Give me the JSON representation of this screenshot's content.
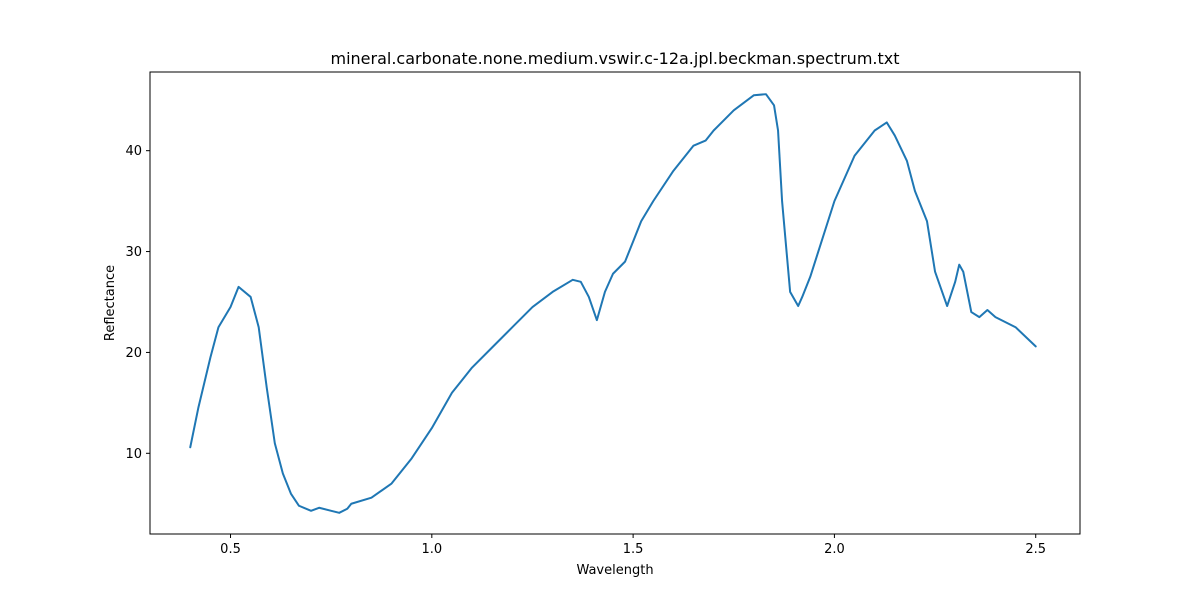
{
  "chart_data": {
    "type": "line",
    "title": "mineral.carbonate.none.medium.vswir.c-12a.jpl.beckman.spectrum.txt",
    "xlabel": "Wavelength",
    "ylabel": "Reflectance",
    "xlim": [
      0.3,
      2.61
    ],
    "ylim": [
      2.0,
      47.8
    ],
    "xticks": [
      0.5,
      1.0,
      1.5,
      2.0,
      2.5
    ],
    "xtick_labels": [
      "0.5",
      "1.0",
      "1.5",
      "2.0",
      "2.5"
    ],
    "yticks": [
      10,
      20,
      30,
      40
    ],
    "ytick_labels": [
      "10",
      "20",
      "30",
      "40"
    ],
    "grid": false,
    "series": [
      {
        "color": "#1f77b4",
        "x": [
          0.4,
          0.42,
          0.45,
          0.47,
          0.5,
          0.52,
          0.55,
          0.57,
          0.59,
          0.61,
          0.63,
          0.65,
          0.67,
          0.7,
          0.72,
          0.75,
          0.77,
          0.79,
          0.8,
          0.85,
          0.9,
          0.95,
          1.0,
          1.05,
          1.1,
          1.15,
          1.2,
          1.25,
          1.3,
          1.35,
          1.37,
          1.39,
          1.41,
          1.43,
          1.45,
          1.48,
          1.5,
          1.52,
          1.55,
          1.6,
          1.65,
          1.68,
          1.7,
          1.75,
          1.8,
          1.83,
          1.85,
          1.86,
          1.87,
          1.89,
          1.91,
          1.92,
          1.94,
          1.96,
          2.0,
          2.05,
          2.1,
          2.13,
          2.15,
          2.18,
          2.2,
          2.23,
          2.25,
          2.28,
          2.3,
          2.31,
          2.32,
          2.34,
          2.36,
          2.38,
          2.4,
          2.45,
          2.5
        ],
        "y": [
          10.6,
          14.5,
          19.5,
          22.5,
          24.5,
          26.5,
          25.5,
          22.5,
          16.5,
          11.0,
          8.0,
          6.0,
          4.8,
          4.3,
          4.6,
          4.3,
          4.1,
          4.5,
          5.0,
          5.6,
          7.0,
          9.5,
          12.5,
          16.0,
          18.5,
          20.5,
          22.5,
          24.5,
          26.0,
          27.2,
          27.0,
          25.5,
          23.2,
          26.0,
          27.8,
          29.0,
          31.0,
          33.0,
          35.0,
          38.0,
          40.5,
          41.0,
          42.0,
          44.0,
          45.5,
          45.6,
          44.5,
          42.0,
          35.0,
          26.0,
          24.6,
          25.5,
          27.5,
          30.0,
          35.0,
          39.5,
          42.0,
          42.8,
          41.5,
          39.0,
          36.0,
          33.0,
          28.0,
          24.6,
          27.0,
          28.7,
          28.0,
          24.0,
          23.5,
          24.2,
          23.5,
          22.5,
          20.6
        ]
      }
    ]
  }
}
